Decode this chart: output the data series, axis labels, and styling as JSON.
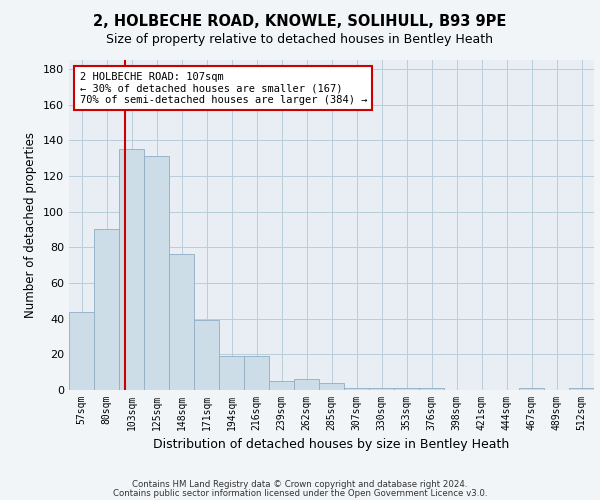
{
  "title_line1": "2, HOLBECHE ROAD, KNOWLE, SOLIHULL, B93 9PE",
  "title_line2": "Size of property relative to detached houses in Bentley Heath",
  "xlabel": "Distribution of detached houses by size in Bentley Heath",
  "ylabel": "Number of detached properties",
  "footer_line1": "Contains HM Land Registry data © Crown copyright and database right 2024.",
  "footer_line2": "Contains public sector information licensed under the Open Government Licence v3.0.",
  "categories": [
    "57sqm",
    "80sqm",
    "103sqm",
    "125sqm",
    "148sqm",
    "171sqm",
    "194sqm",
    "216sqm",
    "239sqm",
    "262sqm",
    "285sqm",
    "307sqm",
    "330sqm",
    "353sqm",
    "376sqm",
    "398sqm",
    "421sqm",
    "444sqm",
    "467sqm",
    "489sqm",
    "512sqm"
  ],
  "bar_values": [
    44,
    90,
    135,
    131,
    76,
    39,
    19,
    19,
    5,
    6,
    4,
    1,
    1,
    1,
    1,
    0,
    0,
    0,
    1,
    0,
    1
  ],
  "bar_color": "#ccdde8",
  "bar_edgecolor": "#90aec4",
  "grid_color": "#b8cdd8",
  "annotation_text": "2 HOLBECHE ROAD: 107sqm\n← 30% of detached houses are smaller (167)\n70% of semi-detached houses are larger (384) →",
  "vline_color": "#cc0000",
  "box_color": "#cc0000",
  "ylim": [
    0,
    185
  ],
  "yticks": [
    0,
    20,
    40,
    60,
    80,
    100,
    120,
    140,
    160,
    180
  ],
  "background_color": "#f2f5f8",
  "plot_background": "#e8eef4"
}
